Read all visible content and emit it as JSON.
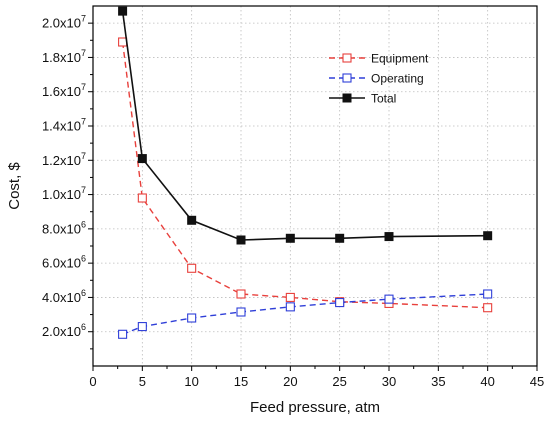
{
  "chart_data": {
    "type": "line",
    "title": "",
    "xlabel": "Feed pressure, atm",
    "ylabel": "Cost, $",
    "xlim": [
      0,
      45
    ],
    "ylim": [
      0,
      21000000
    ],
    "x_ticks": [
      0,
      5,
      10,
      15,
      20,
      25,
      30,
      35,
      40,
      45
    ],
    "x_tick_labels": [
      "0",
      "5",
      "10",
      "15",
      "20",
      "25",
      "30",
      "35",
      "40",
      "45"
    ],
    "y_ticks": [
      2000000,
      4000000,
      6000000,
      8000000,
      10000000,
      12000000,
      14000000,
      16000000,
      18000000,
      20000000
    ],
    "y_tick_mantissas": [
      "2.0x10",
      "4.0x10",
      "6.0x10",
      "8.0x10",
      "1.0x10",
      "1.2x10",
      "1.4x10",
      "1.6x10",
      "1.8x10",
      "2.0x10"
    ],
    "y_tick_exponents": [
      "6",
      "6",
      "6",
      "6",
      "7",
      "7",
      "7",
      "7",
      "7",
      "7"
    ],
    "grid": true,
    "legend_position": "top-right",
    "x": [
      3,
      5,
      10,
      15,
      20,
      25,
      30,
      40
    ],
    "series": [
      {
        "name": "Equipment",
        "values": [
          18900000,
          9800000,
          5700000,
          4200000,
          4000000,
          3750000,
          3650000,
          3400000
        ],
        "color": "#e8403c",
        "line_style": "dashed",
        "marker": "open-square"
      },
      {
        "name": "Operating",
        "values": [
          1850000,
          2300000,
          2800000,
          3150000,
          3450000,
          3700000,
          3900000,
          4200000
        ],
        "color": "#2f3fd8",
        "line_style": "dashed",
        "marker": "open-square"
      },
      {
        "name": "Total",
        "values": [
          20700000,
          12100000,
          8500000,
          7350000,
          7450000,
          7450000,
          7550000,
          7600000
        ],
        "color": "#111111",
        "line_style": "solid",
        "marker": "filled-square"
      }
    ]
  }
}
